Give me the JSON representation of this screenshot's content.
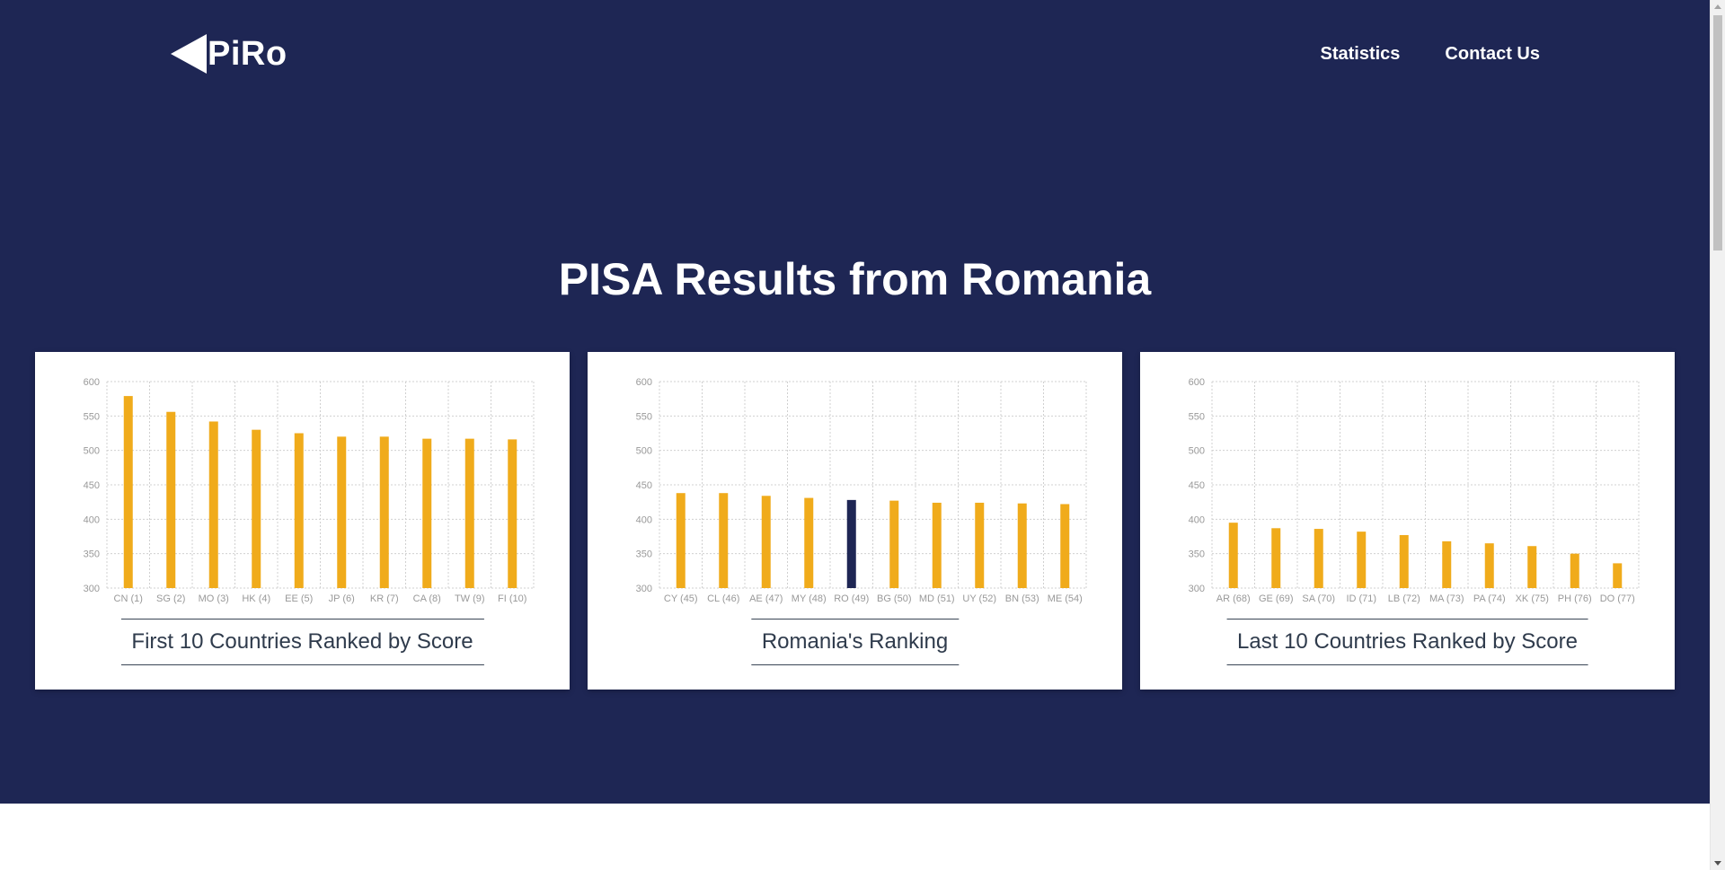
{
  "header": {
    "logo_text": "PiRo",
    "nav": [
      {
        "label": "Statistics"
      },
      {
        "label": "Contact Us"
      }
    ]
  },
  "main": {
    "title": "PISA Results from Romania"
  },
  "colors": {
    "hero_background": "#1e2654",
    "bar": "#f0ab1b",
    "highlight_bar": "#1e2654",
    "grid": "#d0d0d0",
    "tick_text": "#999999",
    "caption_text": "#2f3b4c"
  },
  "chart_data": [
    {
      "type": "bar",
      "title": "First 10 Countries Ranked by Score",
      "categories": [
        "CN (1)",
        "SG (2)",
        "MO (3)",
        "HK (4)",
        "EE (5)",
        "JP (6)",
        "KR (7)",
        "CA (8)",
        "TW (9)",
        "FI (10)"
      ],
      "values": [
        579,
        556,
        542,
        530,
        525,
        520,
        520,
        517,
        517,
        516
      ],
      "ylim": [
        300,
        600
      ],
      "yticks": [
        600,
        550,
        500,
        450,
        400,
        350,
        300
      ],
      "grid": true,
      "highlight": null
    },
    {
      "type": "bar",
      "title": "Romania's Ranking",
      "categories": [
        "CY (45)",
        "CL (46)",
        "AE (47)",
        "MY (48)",
        "RO (49)",
        "BG (50)",
        "MD (51)",
        "UY (52)",
        "BN (53)",
        "ME (54)"
      ],
      "values": [
        438,
        438,
        434,
        431,
        428,
        427,
        424,
        424,
        423,
        422
      ],
      "ylim": [
        300,
        600
      ],
      "yticks": [
        600,
        550,
        500,
        450,
        400,
        350,
        300
      ],
      "grid": true,
      "highlight": "RO (49)"
    },
    {
      "type": "bar",
      "title": "Last 10 Countries Ranked by Score",
      "categories": [
        "AR (68)",
        "GE (69)",
        "SA (70)",
        "ID (71)",
        "LB (72)",
        "MA (73)",
        "PA (74)",
        "XK (75)",
        "PH (76)",
        "DO (77)"
      ],
      "values": [
        395,
        387,
        386,
        382,
        377,
        368,
        365,
        361,
        350,
        336
      ],
      "ylim": [
        300,
        600
      ],
      "yticks": [
        600,
        550,
        500,
        450,
        400,
        350,
        300
      ],
      "grid": true,
      "highlight": null
    }
  ]
}
